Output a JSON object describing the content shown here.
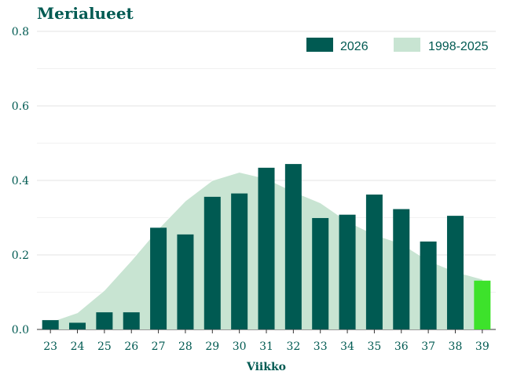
{
  "chart_data": {
    "type": "bar",
    "title": "Merialueet",
    "xlabel": "Viikko",
    "ylabel": "",
    "ylim": [
      0,
      0.8
    ],
    "yticks": [
      "0.0",
      "0.2",
      "0.4",
      "0.6",
      "0.8"
    ],
    "grid": true,
    "legend": "top-right",
    "categories": [
      "23",
      "24",
      "25",
      "26",
      "27",
      "28",
      "29",
      "30",
      "31",
      "32",
      "33",
      "34",
      "35",
      "36",
      "37",
      "38",
      "39"
    ],
    "series": [
      {
        "name": "2026",
        "kind": "bar",
        "color": "#005a52",
        "highlight_last_color": "#3de22b",
        "values": [
          0.025,
          0.018,
          0.046,
          0.046,
          0.273,
          0.255,
          0.356,
          0.365,
          0.434,
          0.444,
          0.299,
          0.308,
          0.362,
          0.323,
          0.236,
          0.305,
          0.131
        ]
      },
      {
        "name": "1998-2025",
        "kind": "area",
        "color": "#c8e4d2",
        "line_color": "#ffffff",
        "values": [
          0.02,
          0.045,
          0.105,
          0.185,
          0.27,
          0.345,
          0.4,
          0.422,
          0.405,
          0.37,
          0.34,
          0.29,
          0.255,
          0.23,
          0.185,
          0.155,
          0.135
        ]
      }
    ]
  }
}
